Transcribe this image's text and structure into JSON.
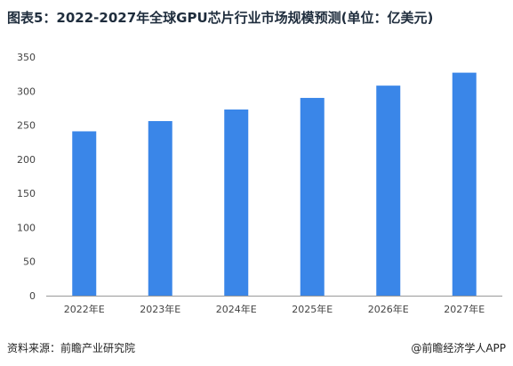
{
  "header": {
    "title": "图表5：2022-2027年全球GPU芯片行业市场规模预测(单位：亿美元)"
  },
  "footer": {
    "source": "资料来源：前瞻产业研究院",
    "brand": "@前瞻经济学人APP"
  },
  "colors": {
    "bar": "#3a86e8",
    "axis": "#999999",
    "text": "#444444"
  },
  "chart_data": {
    "type": "bar",
    "categories": [
      "2022年E",
      "2023年E",
      "2024年E",
      "2025年E",
      "2026年E",
      "2027年E"
    ],
    "values": [
      241,
      256,
      273,
      290,
      308,
      327
    ],
    "ylim": [
      0,
      350
    ],
    "yticks": [
      0,
      50,
      100,
      150,
      200,
      250,
      300,
      350
    ],
    "grid": false,
    "legend": "none"
  }
}
